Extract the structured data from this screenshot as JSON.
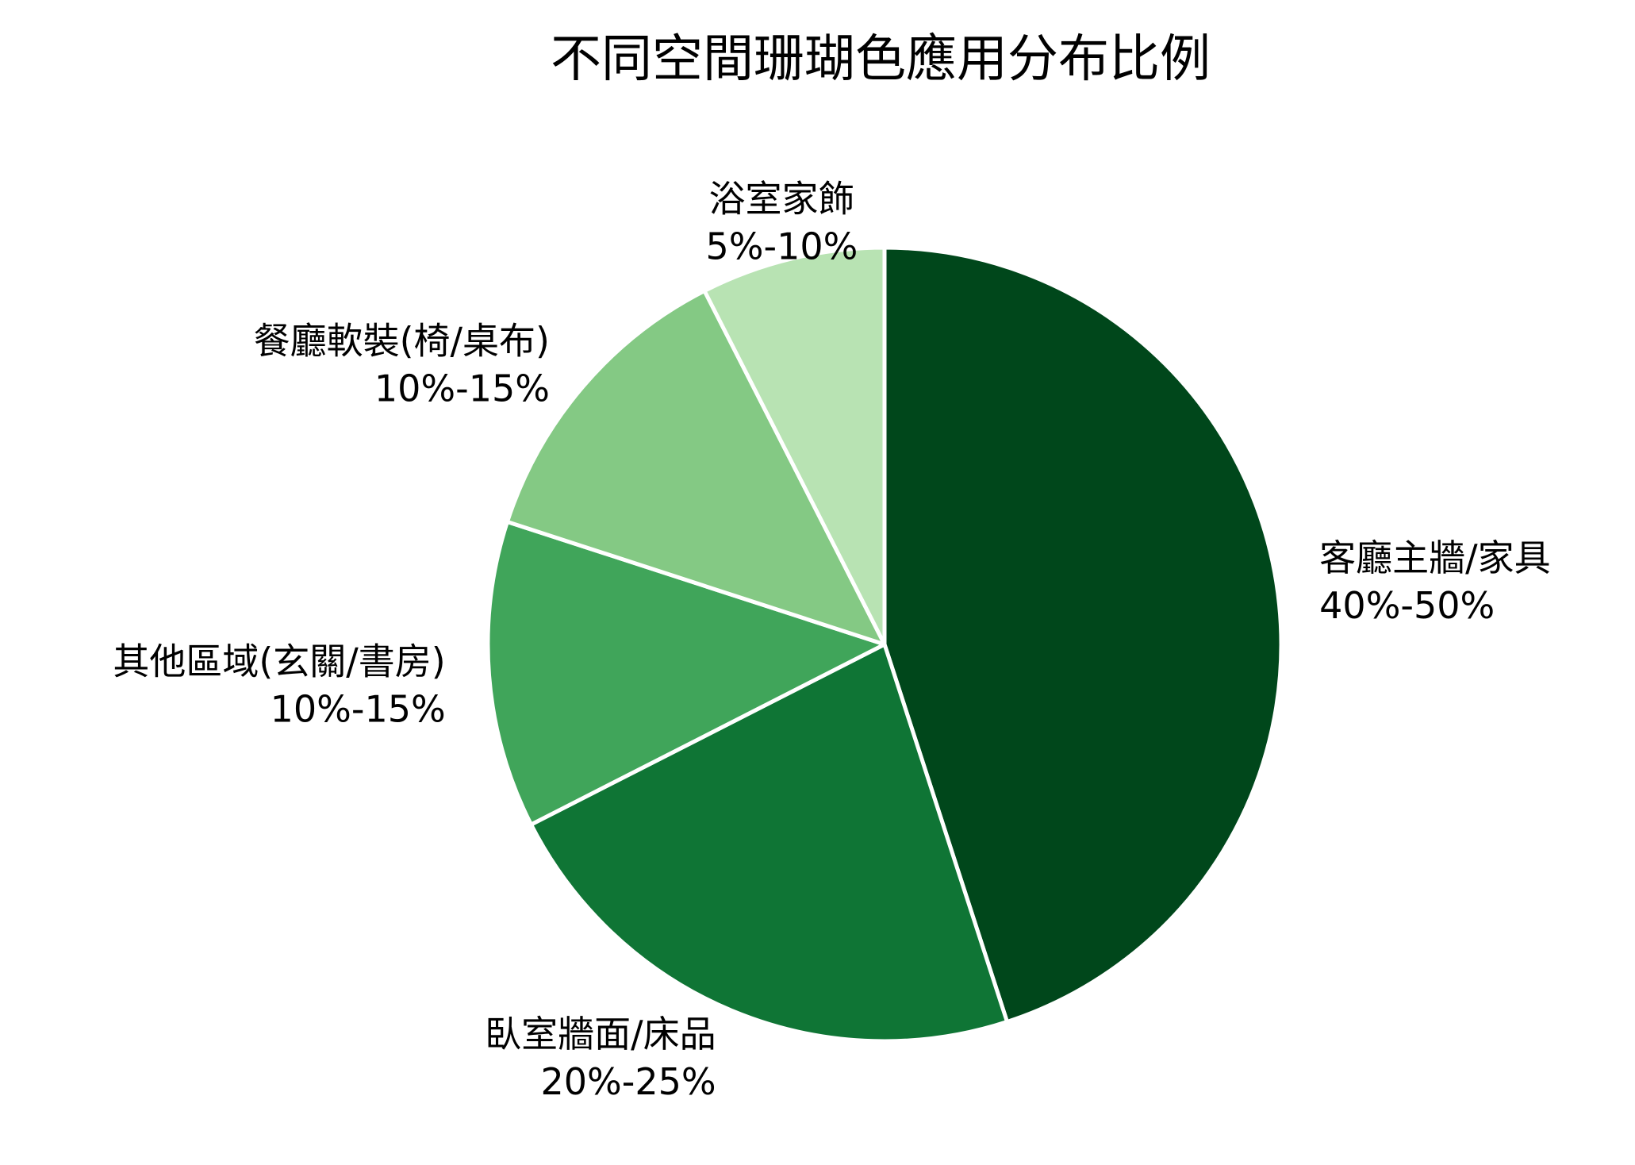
{
  "chart_data": {
    "type": "pie",
    "title": "不同空間珊瑚色應用分布比例",
    "start_angle_deg": 0,
    "direction": "clockwise",
    "slices": [
      {
        "label": "客廳主牆/家具",
        "range": "40%-50%",
        "value": 45,
        "color": "#00471b"
      },
      {
        "label": "臥室牆面/床品",
        "range": "20%-25%",
        "value": 22.5,
        "color": "#0f7535"
      },
      {
        "label": "其他區域(玄關/書房)",
        "range": "10%-15%",
        "value": 12.5,
        "color": "#40a55a"
      },
      {
        "label": "餐廳軟裝(椅/桌布)",
        "range": "10%-15%",
        "value": 12.5,
        "color": "#84c984"
      },
      {
        "label": "浴室家飾",
        "range": "5%-10%",
        "value": 7.5,
        "color": "#b8e3b3"
      }
    ]
  }
}
